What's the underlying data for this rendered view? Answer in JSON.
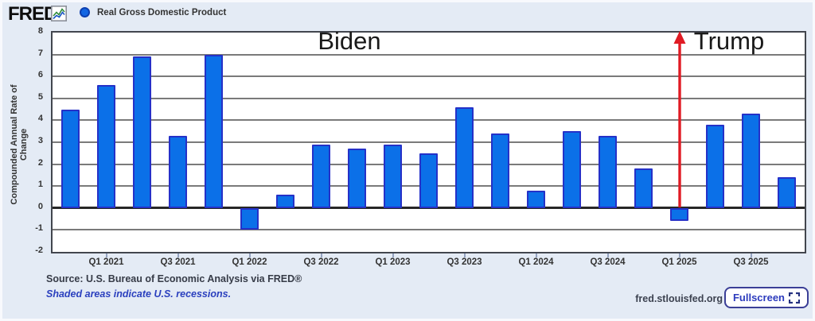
{
  "header": {
    "brand": "FRED.",
    "legend": {
      "marker": "blue-dot",
      "label": "Real Gross Domestic Product"
    }
  },
  "chart_data": {
    "type": "bar",
    "title": "",
    "ylabel": "Compounded Annual Rate of Change",
    "xlabel": "",
    "ylim": [
      -2,
      8
    ],
    "y_ticks": [
      8,
      7,
      6,
      5,
      4,
      3,
      2,
      1,
      0,
      -1,
      -2
    ],
    "grid": true,
    "legend_position": "top-left",
    "categories": [
      "Q4 2020",
      "Q1 2021",
      "Q2 2021",
      "Q3 2021",
      "Q4 2021",
      "Q1 2022",
      "Q2 2022",
      "Q3 2022",
      "Q4 2022",
      "Q1 2023",
      "Q2 2023",
      "Q3 2023",
      "Q4 2023",
      "Q1 2024",
      "Q2 2024",
      "Q3 2024",
      "Q4 2024",
      "Q1 2025",
      "Q2 2025",
      "Q3 2025",
      "Q4 2025"
    ],
    "values": [
      4.5,
      5.6,
      6.9,
      3.3,
      7.0,
      -1.0,
      0.6,
      2.9,
      2.7,
      2.9,
      2.5,
      4.6,
      3.4,
      0.8,
      3.5,
      3.3,
      1.8,
      -0.6,
      3.8,
      4.3,
      1.4
    ],
    "x_tick_labels": [
      "Q1 2021",
      "Q3 2021",
      "Q1 2022",
      "Q3 2022",
      "Q1 2023",
      "Q3 2023",
      "Q1 2024",
      "Q3 2024",
      "Q1 2025",
      "Q3 2025"
    ],
    "annotations": {
      "biden": {
        "label": "Biden"
      },
      "trump": {
        "label": "Trump",
        "arrow": {
          "category": "Q1 2025",
          "direction": "up",
          "color": "#e01b24"
        }
      }
    }
  },
  "colors": {
    "bar_fill": "#0b70e8",
    "bar_border": "#2531c8",
    "arrow_red": "#e01b24",
    "background": "#e4ebf5",
    "plot_background": "#ffffff",
    "gridline": "#7a7a7a",
    "zero_line": "#272727",
    "note_blue": "#2a3fbe"
  },
  "footer": {
    "source": "Source: U.S. Bureau of Economic Analysis via FRED®",
    "note": "Shaded areas indicate U.S. recessions.",
    "site": "fred.stlouisfed.org",
    "fullscreen_label": "Fullscreen"
  }
}
